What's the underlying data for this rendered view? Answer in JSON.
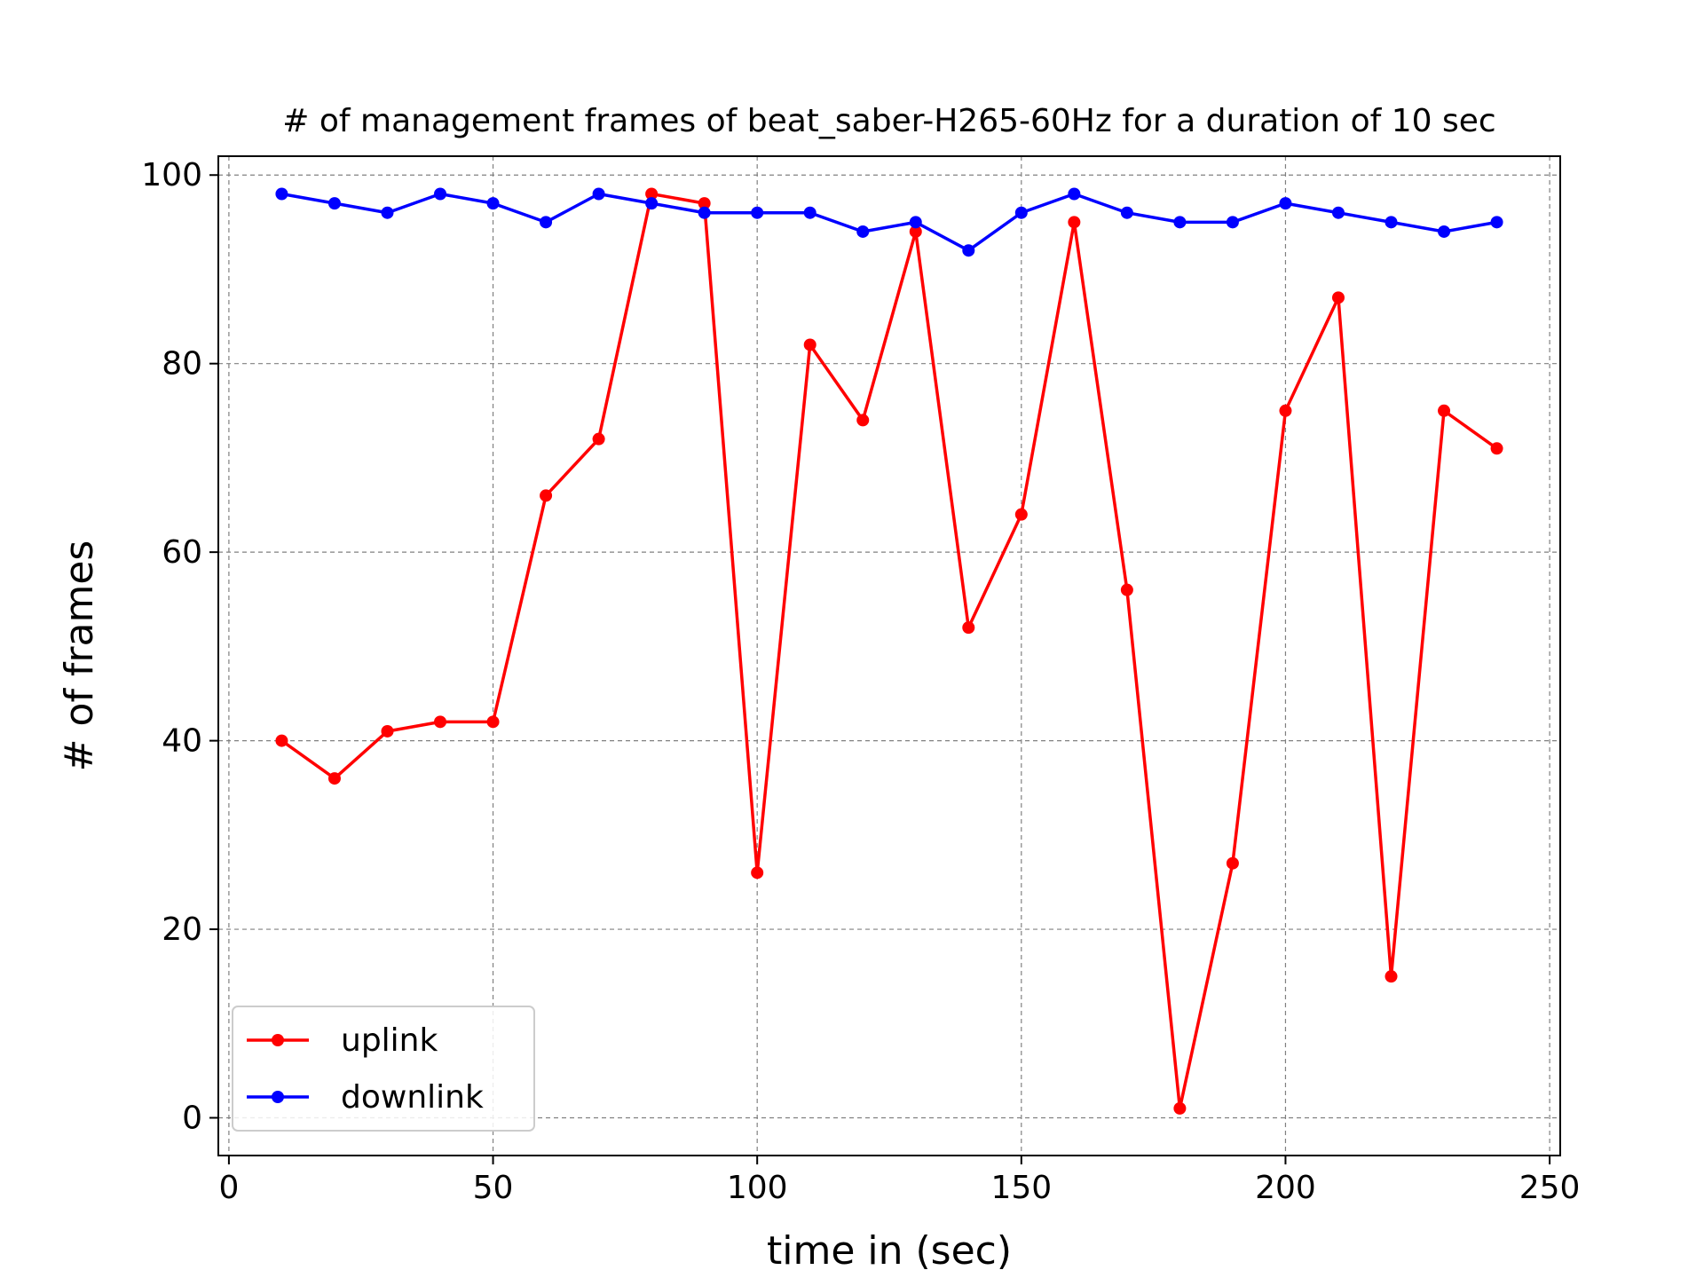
{
  "chart_data": {
    "type": "line",
    "title": "# of management frames of beat_saber-H265-60Hz for a duration of 10 sec",
    "xlabel": "time in (sec)",
    "ylabel": "# of frames",
    "xlim": [
      -2,
      252
    ],
    "ylim": [
      -4,
      102
    ],
    "xticks": [
      0,
      50,
      100,
      150,
      200,
      250
    ],
    "yticks": [
      0,
      20,
      40,
      60,
      80,
      100
    ],
    "grid": true,
    "legend_position": "lower-left",
    "x": [
      10,
      20,
      30,
      40,
      50,
      60,
      70,
      80,
      90,
      100,
      110,
      120,
      130,
      140,
      150,
      160,
      170,
      180,
      190,
      200,
      210,
      220,
      230,
      240
    ],
    "series": [
      {
        "name": "uplink",
        "color": "#ff0000",
        "values": [
          40,
          36,
          41,
          42,
          42,
          66,
          72,
          98,
          97,
          26,
          82,
          74,
          94,
          52,
          64,
          95,
          56,
          1,
          27,
          75,
          87,
          15,
          75,
          71
        ]
      },
      {
        "name": "downlink",
        "color": "#0000ff",
        "values": [
          98,
          97,
          96,
          98,
          97,
          95,
          98,
          97,
          96,
          96,
          96,
          94,
          95,
          92,
          96,
          98,
          96,
          95,
          95,
          97,
          96,
          95,
          94,
          95
        ]
      }
    ]
  }
}
